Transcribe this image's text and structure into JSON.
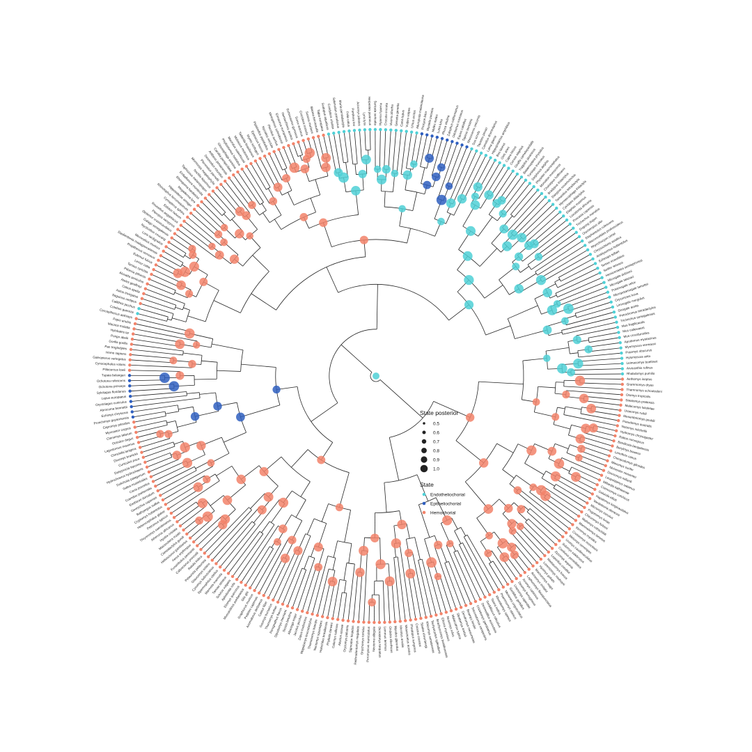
{
  "legend": {
    "size_title": "State posterior",
    "size_items": [
      "0.5",
      "0.6",
      "0.7",
      "0.8",
      "0.9",
      "1.0"
    ],
    "state_title": "State",
    "state_items": [
      {
        "label": "Endotheliochorial",
        "color": "#4fd0d6"
      },
      {
        "label": "Epitheliochorial",
        "color": "#2f5fbf"
      },
      {
        "label": "Hemochorial",
        "color": "#f2836a"
      }
    ]
  },
  "tips": [
    "Mus fragilicauda",
    "Mus callewaerti",
    "Mus crociduroides",
    "Apodemus mystacinus",
    "Myomyscus verreauxi",
    "Praomys obscurus",
    "Hylomyscus aeta",
    "Leimacomys buettneri",
    "Arvicanthis rufinus",
    "Rhabdomys pumilio",
    "Aethomys ineptus",
    "Grammomys dryas",
    "Thamnomys schoutedeni",
    "Otomys tropicalis",
    "Steatomys pratensis",
    "Malacomys lukolelae",
    "Uranomys ruddi",
    "Mesembriomys gouldii",
    "Pseudomys australis",
    "Notomys mitchellii",
    "Hydromys chrysogaster",
    "Rattus norvegicus",
    "Bandicota bengalensis",
    "Berylmys bowersi",
    "Lenothrix canus",
    "Chiropodomys gliroides",
    "Maxomys surifer",
    "Niviventer niviventer",
    "Dacnomys millardi",
    "Leopoldamys sabanus",
    "Millardia kathleenae",
    "Cremnomys cutchicus",
    "Golunda ellioti",
    "Hapalomys longicaudatus",
    "Vandeleuria oleracea",
    "Micromys minutus",
    "Pogonomys loriae",
    "Chiruromys forbesi",
    "Mallomys rothschildi",
    "Mammelomys lanosus",
    "Xeromys myoides",
    "Crossomys moncktoni",
    "Melomys cervinipes",
    "Uromys caudimaculatus",
    "Solomys salebrosus",
    "Conilurus penicillatus",
    "Zyzomys argurus",
    "Leporillus conditor",
    "Mastacomys fuscus",
    "Lorentzimys nouhuysi",
    "Hyomys goliath",
    "Macruromys major",
    "Anisomys imitator",
    "Lophuromys flavopunctatus",
    "Acomys cahirinus",
    "Deomys ferrugineus",
    "Uranomys ugandae",
    "Gerbillus gerbillus",
    "Meriones unguiculatus",
    "Psammomys obesus",
    "Rhombomys opimus",
    "Tatera indica",
    "Gerbilliscus robustus",
    "Desmodillus auricularis",
    "Cricetomys gambianus",
    "Saccostomus campestris",
    "Beamys hindei",
    "Dendromus mesomelas",
    "Steatomys krebsii",
    "Malacothrix typica",
    "Nesomys rufus",
    "Eliurus myoxinus",
    "Brachyuromys betsileoensis",
    "Tachyoryctes splendens",
    "Rhizomys sumatrensis",
    "Spalax ehrenbergi",
    "Cricetus cricetus",
    "Phodopus sungorus",
    "Mesocricetus auratus",
    "Microtus arvalis",
    "Myodes glareolus",
    "Ondatra zibethicus",
    "Lemmus lemmus",
    "Dicrostonyx torquatus",
    "Neotoma albigula",
    "Peromyscus maniculatus",
    "Onychomys torridus",
    "Reithrodontomys megalotis",
    "Sigmodon hispidus",
    "Oryzomys palustris",
    "Akodon azarae",
    "Calomys callosus",
    "Phyllotis darwini",
    "Holochilus brasiliensis",
    "Nectomys squamipes",
    "Thomasomys baeops",
    "Rhipidomys leucodactylus",
    "Zapus hudsonius",
    "Jaculus jaculus",
    "Allactaga major",
    "Sicista betulina",
    "Dipodomys merriami",
    "Perognathus flavus",
    "Thomomys bottae",
    "Geomys bursarius",
    "Castor fiber",
    "Anomalurus derbianus",
    "Pedetes capensis",
    "Graphiurus murinus",
    "Glis glis",
    "Muscardinus avellanarius",
    "Eliomys quercinus",
    "Aplodontia rufa",
    "Sciurus vulgaris",
    "Tamias striatus",
    "Marmota marmota",
    "Spermophilus citellus",
    "Cynomys ludovicianus",
    "Glaucomys volans",
    "Petaurista petaurista",
    "Ratufa indica",
    "Callosciurus prevostii",
    "Funambulus pennantii",
    "Xerus erythropus",
    "Heliosciurus gambianus",
    "Ctenodactylus gundi",
    "Massoutiera mzabi",
    "Hystrix cristata",
    "Atherurus africanus",
    "Thryonomys swinderianus",
    "Petromus typicus",
    "Heterocephalus glaber",
    "Cryptomys hottentotus",
    "Bathyergus suillus",
    "Georychus capensis",
    "Erethizon dorsatum",
    "Coendou prehensilis",
    "Cavia porcellus",
    "Galea musteloides",
    "Dolichotis patagonum",
    "Hydrochoerus hydrochaeris",
    "Dasyprocta leporina",
    "Cuniculus paca",
    "Dinomys branickii",
    "Chinchilla lanigera",
    "Lagostomus maximus",
    "Octodon degus",
    "Ctenomys talarum",
    "Myocastor coypus",
    "Capromys pilorides",
    "Proechimys guyannensis",
    "Echimys chrysurus",
    "Abrocoma bennettii",
    "Oryctolagus cuniculus",
    "Lepus europaeus",
    "Sylvilagus floridanus",
    "Ochotona princeps",
    "Ochotona rufescens",
    "Tupaia belangeri",
    "Ptilocercus lowii",
    "Cynocephalus volans",
    "Galeopterus variegatus",
    "Homo sapiens",
    "Pan troglodytes",
    "Gorilla gorilla",
    "Pongo abelii",
    "Hylobates lar",
    "Macaca mulatta",
    "Papio anubis",
    "Cercopithecus aethiops",
    "Colobus guereza",
    "Callithrix jacchus",
    "Saguinus oedipus",
    "Aotus trivirgatus",
    "Cebus apella",
    "Ateles geoffroyi",
    "Alouatta seniculus",
    "Pithecia pithecia",
    "Tarsius syrichta",
    "Lemur catta",
    "Eulemur fulvus",
    "Propithecus verreauxi",
    "Daubentonia madagascariensis",
    "Microcebus murinus",
    "Loris tardigradus",
    "Nycticebus coucang",
    "Galago senegalensis",
    "Otolemur crassicaudatus",
    "Pteropus vampyrus",
    "Rousettus aegyptiacus",
    "Eidolon helvum",
    "Cynopterus sphinx",
    "Rhinolophus ferrumequinum",
    "Hipposideros armiger",
    "Megaderma lyra",
    "Rhinopoma hardwickii",
    "Emballonura monticola",
    "Taphozous melanopogon",
    "Noctilio leporinus",
    "Mormoops megalophylla",
    "Pteronotus parnellii",
    "Desmodus rotundus",
    "Artibeus jamaicensis",
    "Carollia perspicillata",
    "Glossophaga soricina",
    "Phyllostomus hastatus",
    "Macrotus waterhousii",
    "Molossus molossus",
    "Tadarida brasiliensis",
    "Myotis lucifugus",
    "Eptesicus fuscus",
    "Pipistrellus pipistrellus",
    "Nyctalus noctula",
    "Plecotus auritus",
    "Miniopterus schreibersii",
    "Erinaceus europaeus",
    "Hemiechinus auritus",
    "Echinosorex gymnura",
    "Sorex araneus",
    "Crocidura russula",
    "Suncus murinus",
    "Blarina brevicauda",
    "Talpa europaea",
    "Scalopus aquaticus",
    "Condylura cristata",
    "Solenodon paradoxus",
    "Manis pentadactyla",
    "Felis catus",
    "Panthera leo",
    "Acinonyx jubatus",
    "Lynx lynx",
    "Herpestes javanicus",
    "Suricata suricatta",
    "Hyaena hyaena",
    "Crocuta crocuta",
    "Viverra zibetha",
    "Genetta genetta",
    "Canis lupus",
    "Vulpes vulpes",
    "Ursus arctos",
    "Ailuropoda melanoleuca",
    "Procyon lotor",
    "Mustela putorius",
    "Meles meles",
    "Lutra lutra",
    "Phoca vitulina",
    "Zalophus californianus",
    "Odobenus rosmarus",
    "Equus caballus",
    "Tapirus terrestris",
    "Rhinoceros unicornis",
    "Sus scrofa",
    "Tayassu pecari",
    "Camelus dromedarius",
    "Lama glama",
    "Hippopotamus amphibius",
    "Bos taurus",
    "Ovis aries",
    "Capra hircus",
    "Cervus elaphus",
    "Giraffa camelopardalis",
    "Tragulus javanicus",
    "Balaenoptera physalus",
    "Tursiops truncatus",
    "Delphinus delphis",
    "Physeter macrocephalus",
    "Monodon monoceros",
    "Choloepus hoffmanni",
    "Bradypus tridactylus",
    "Dasypus novemcinctus",
    "Tamandua tetradactyla",
    "Myrmecophaga tridactyla",
    "Cyclopes didactylus",
    "Elephas maximus",
    "Loxodonta africana",
    "Procavia capensis",
    "Trichechus manatus",
    "Dugong dugon",
    "Orycteropus afer",
    "Elephantulus rufescens",
    "Macroscelides proboscideus",
    "Rhynchocyon cirnei",
    "Chrysochloris asiatica",
    "Amblysomus hottentotus",
    "Echinops telfairi",
    "Tenrec ecaudatus",
    "Setifer setosus",
    "Hemicentetes semispinosus",
    "Microgale dobsoni",
    "Microgale talazaci",
    "Potamogale velox",
    "Micropotamogale lamottei",
    "Oryzorictes hova",
    "Limnogale mergulus",
    "Geogale aurita",
    "Petrodromus tetradactylus",
    "Trichechus senegalensis"
  ]
}
